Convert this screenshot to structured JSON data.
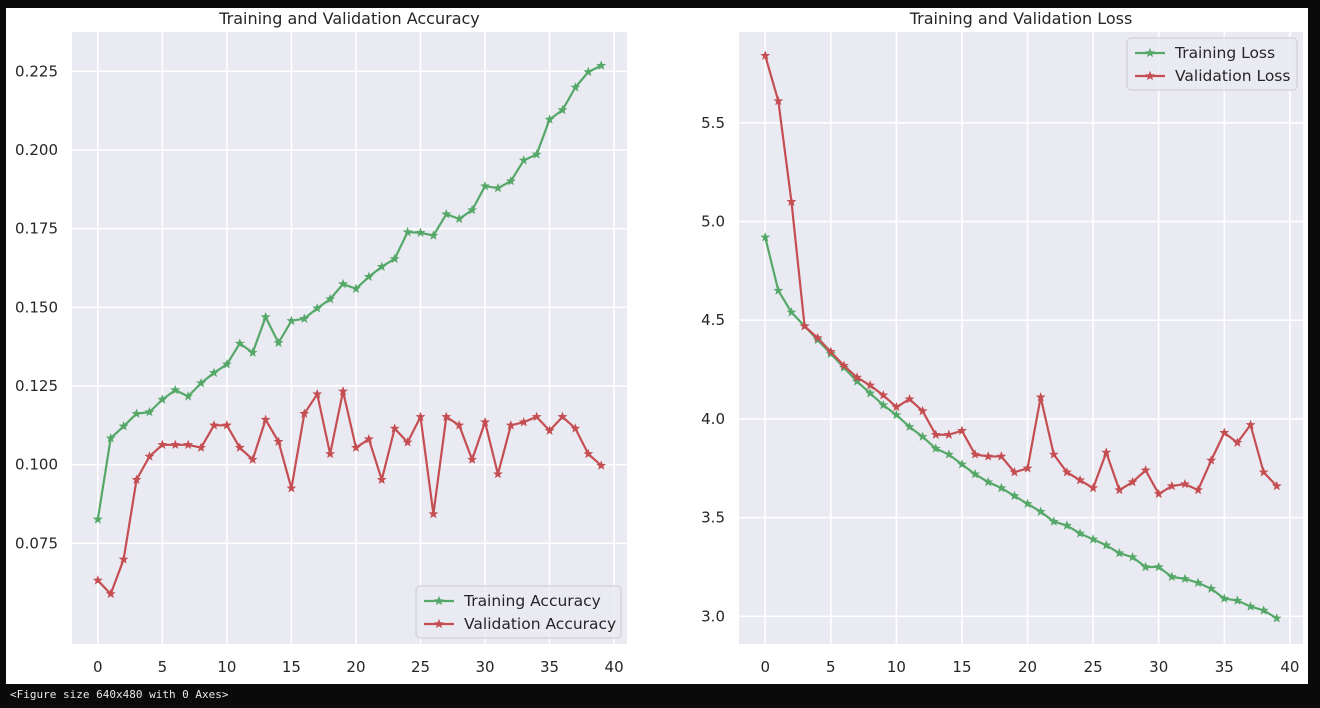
{
  "footer_text": "<Figure size 640x480 with 0 Axes>",
  "colors": {
    "plot_background": "#eaeaf2",
    "grid": "#ffffff",
    "training": "#55a868",
    "validation": "#c44e52"
  },
  "chart_data": [
    {
      "type": "line",
      "title": "Training and Validation Accuracy",
      "xlabel": "",
      "ylabel": "",
      "xlim": [
        -2,
        41
      ],
      "ylim": [
        0.043,
        0.2375
      ],
      "xticks": [
        0,
        5,
        10,
        15,
        20,
        25,
        30,
        35,
        40
      ],
      "xtick_labels": [
        "0",
        "5",
        "10",
        "15",
        "20",
        "25",
        "30",
        "35",
        "40"
      ],
      "yticks": [
        0.075,
        0.1,
        0.125,
        0.15,
        0.175,
        0.2,
        0.225
      ],
      "ytick_labels": [
        "0.075",
        "0.100",
        "0.125",
        "0.150",
        "0.175",
        "0.200",
        "0.225"
      ],
      "grid": true,
      "legend_position": "lower-right",
      "marker": "star",
      "x": [
        0,
        1,
        2,
        3,
        4,
        5,
        6,
        7,
        8,
        9,
        10,
        11,
        12,
        13,
        14,
        15,
        16,
        17,
        18,
        19,
        20,
        21,
        22,
        23,
        24,
        25,
        26,
        27,
        28,
        29,
        30,
        31,
        32,
        33,
        34,
        35,
        36,
        37,
        38,
        39
      ],
      "series": [
        {
          "name": "Training Accuracy",
          "color": "#55a868",
          "values": [
            0.0826,
            0.1084,
            0.1122,
            0.1162,
            0.1167,
            0.1207,
            0.1237,
            0.1217,
            0.1259,
            0.1292,
            0.1319,
            0.1385,
            0.1356,
            0.1469,
            0.1387,
            0.1457,
            0.1464,
            0.1497,
            0.1526,
            0.1574,
            0.1559,
            0.1597,
            0.1629,
            0.1654,
            0.1739,
            0.1737,
            0.1728,
            0.1796,
            0.1781,
            0.1809,
            0.1885,
            0.1879,
            0.1901,
            0.1967,
            0.1986,
            0.2097,
            0.2127,
            0.2199,
            0.2248,
            0.2268
          ]
        },
        {
          "name": "Validation Accuracy",
          "color": "#c44e52",
          "values": [
            0.0632,
            0.0589,
            0.0699,
            0.0952,
            0.1026,
            0.1063,
            0.1063,
            0.1063,
            0.1054,
            0.1125,
            0.1125,
            0.1054,
            0.1016,
            0.1143,
            0.1073,
            0.0925,
            0.1162,
            0.1224,
            0.1034,
            0.1233,
            0.1054,
            0.1081,
            0.0952,
            0.1115,
            0.1071,
            0.1152,
            0.0843,
            0.1152,
            0.1125,
            0.1016,
            0.1135,
            0.097,
            0.1125,
            0.1135,
            0.1152,
            0.1108,
            0.1152,
            0.1115,
            0.1034,
            0.0997
          ]
        }
      ]
    },
    {
      "type": "line",
      "title": "Training and Validation Loss",
      "xlabel": "",
      "ylabel": "",
      "xlim": [
        -2,
        41
      ],
      "ylim": [
        2.86,
        5.96
      ],
      "xticks": [
        0,
        5,
        10,
        15,
        20,
        25,
        30,
        35,
        40
      ],
      "xtick_labels": [
        "0",
        "5",
        "10",
        "15",
        "20",
        "25",
        "30",
        "35",
        "40"
      ],
      "yticks": [
        3.0,
        3.5,
        4.0,
        4.5,
        5.0,
        5.5
      ],
      "ytick_labels": [
        "3.0",
        "3.5",
        "4.0",
        "4.5",
        "5.0",
        "5.5"
      ],
      "grid": true,
      "legend_position": "upper-right",
      "marker": "star",
      "x": [
        0,
        1,
        2,
        3,
        4,
        5,
        6,
        7,
        8,
        9,
        10,
        11,
        12,
        13,
        14,
        15,
        16,
        17,
        18,
        19,
        20,
        21,
        22,
        23,
        24,
        25,
        26,
        27,
        28,
        29,
        30,
        31,
        32,
        33,
        34,
        35,
        36,
        37,
        38,
        39
      ],
      "series": [
        {
          "name": "Training Loss",
          "color": "#55a868",
          "values": [
            4.92,
            4.65,
            4.54,
            4.47,
            4.4,
            4.33,
            4.26,
            4.19,
            4.13,
            4.07,
            4.02,
            3.96,
            3.91,
            3.85,
            3.82,
            3.77,
            3.72,
            3.68,
            3.65,
            3.61,
            3.57,
            3.53,
            3.48,
            3.46,
            3.42,
            3.39,
            3.36,
            3.32,
            3.3,
            3.25,
            3.25,
            3.2,
            3.19,
            3.17,
            3.14,
            3.09,
            3.08,
            3.05,
            3.03,
            2.99
          ]
        },
        {
          "name": "Validation Loss",
          "color": "#c44e52",
          "values": [
            5.84,
            5.61,
            5.1,
            4.47,
            4.41,
            4.34,
            4.27,
            4.21,
            4.17,
            4.12,
            4.06,
            4.1,
            4.04,
            3.92,
            3.92,
            3.94,
            3.82,
            3.81,
            3.81,
            3.73,
            3.75,
            4.11,
            3.82,
            3.73,
            3.69,
            3.65,
            3.83,
            3.64,
            3.68,
            3.74,
            3.62,
            3.66,
            3.67,
            3.64,
            3.79,
            3.93,
            3.88,
            3.97,
            3.73,
            3.66
          ]
        }
      ]
    }
  ]
}
